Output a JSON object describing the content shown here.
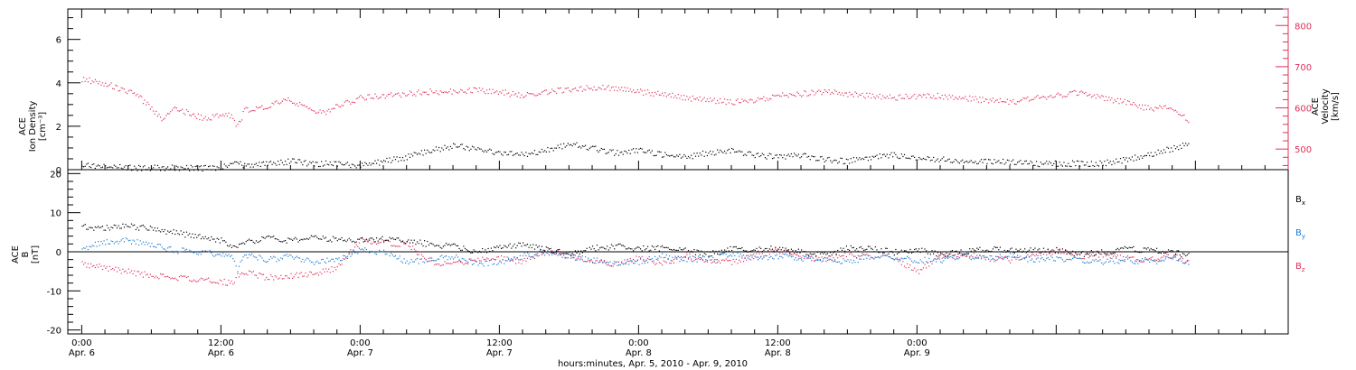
{
  "colors": {
    "density": "#000000",
    "velocity": "#e0305a",
    "bx": "#000000",
    "by": "#1c7ad4",
    "bz": "#e0305a"
  },
  "chart_data": [
    {
      "type": "scatter",
      "panel": "top",
      "ylabel_left": [
        "ACE",
        "Ion Density",
        "[cm⁻³]"
      ],
      "ylabel_right": [
        "ACE",
        "Velocity",
        "[km/s]"
      ],
      "ylim_left": [
        0,
        7.4
      ],
      "ylim_right": [
        450,
        840
      ],
      "yticks_left": [
        "0",
        "2",
        "4",
        "6"
      ],
      "yticks_right": [
        "500",
        "600",
        "700",
        "800"
      ],
      "series": [
        {
          "axis": "left",
          "x": [
            0,
            2,
            4,
            6,
            8,
            10,
            12,
            13.4,
            14,
            16,
            18,
            20,
            22,
            24,
            26,
            28,
            30,
            32,
            34,
            36,
            38,
            40,
            42,
            44,
            46,
            48,
            50,
            52,
            54,
            56,
            58,
            60,
            62,
            64,
            66,
            68,
            70,
            72,
            74,
            76,
            78,
            80,
            82,
            84,
            86,
            88,
            90,
            92,
            94,
            95.5
          ],
          "values": [
            0.25,
            0.15,
            0.12,
            0.1,
            0.1,
            0.08,
            0.1,
            0.4,
            0.2,
            0.3,
            0.4,
            0.3,
            0.3,
            0.2,
            0.4,
            0.6,
            0.9,
            1.1,
            1.0,
            0.8,
            0.7,
            0.9,
            1.2,
            1.0,
            0.8,
            0.9,
            0.7,
            0.6,
            0.8,
            0.9,
            0.7,
            0.6,
            0.7,
            0.5,
            0.4,
            0.6,
            0.7,
            0.5,
            0.5,
            0.4,
            0.4,
            0.4,
            0.3,
            0.3,
            0.3,
            0.3,
            0.5,
            0.7,
            1.0,
            1.2
          ]
        },
        {
          "axis": "right",
          "x": [
            0,
            1,
            2,
            3,
            4,
            5,
            6,
            7,
            8,
            9,
            10,
            11,
            12,
            13,
            13.4,
            14,
            15,
            16,
            17,
            18,
            19,
            20,
            21,
            22,
            23,
            24,
            26,
            28,
            30,
            32,
            34,
            36,
            38,
            40,
            42,
            44,
            46,
            48,
            50,
            52,
            54,
            56,
            58,
            60,
            62,
            64,
            66,
            68,
            70,
            72,
            74,
            76,
            78,
            80,
            82,
            84,
            86,
            88,
            90,
            91,
            92,
            93,
            94,
            95,
            95.5
          ],
          "values": [
            670,
            665,
            660,
            650,
            640,
            625,
            600,
            570,
            600,
            590,
            580,
            575,
            585,
            580,
            555,
            595,
            600,
            605,
            615,
            620,
            605,
            590,
            590,
            605,
            615,
            625,
            630,
            635,
            640,
            640,
            645,
            640,
            630,
            640,
            645,
            650,
            650,
            640,
            635,
            625,
            620,
            615,
            620,
            630,
            635,
            640,
            635,
            630,
            625,
            630,
            630,
            625,
            620,
            615,
            625,
            630,
            640,
            625,
            615,
            605,
            600,
            600,
            600,
            585,
            555
          ]
        }
      ]
    },
    {
      "type": "scatter",
      "panel": "bottom",
      "ylabel": [
        "ACE",
        "B",
        "[nT]"
      ],
      "ylim": [
        -21,
        21
      ],
      "yticks": [
        "-20",
        "-10",
        "0",
        "10",
        "20"
      ],
      "legend": [
        "Bx",
        "By",
        "Bz"
      ],
      "series": [
        {
          "name": "Bx",
          "x": [
            0,
            2,
            4,
            6,
            8,
            10,
            12,
            13.4,
            14,
            16,
            18,
            20,
            22,
            24,
            26,
            28,
            30,
            32,
            34,
            36,
            38,
            40,
            42,
            44,
            46,
            48,
            50,
            52,
            54,
            56,
            58,
            60,
            62,
            64,
            66,
            68,
            70,
            72,
            74,
            76,
            78,
            80,
            82,
            84,
            86,
            88,
            90,
            92,
            94,
            95.5
          ],
          "values": [
            6.5,
            6.2,
            6.6,
            6.0,
            5.0,
            4.0,
            3.0,
            1.0,
            2.5,
            3.5,
            3.0,
            3.8,
            3.2,
            3.0,
            3.5,
            3.0,
            2.0,
            1.5,
            0,
            1.5,
            2.0,
            1.0,
            -0.5,
            1.0,
            1.5,
            1.0,
            1.0,
            0.5,
            -0.5,
            1.0,
            0.5,
            1.0,
            0,
            -0.5,
            1.0,
            0.8,
            0,
            0.5,
            -0.5,
            0,
            0.8,
            0.5,
            0.5,
            0.5,
            -0.5,
            0,
            0.8,
            0.5,
            0,
            -1.0
          ]
        },
        {
          "name": "By",
          "x": [
            0,
            2,
            4,
            6,
            8,
            10,
            12,
            13,
            13.4,
            14,
            16,
            18,
            20,
            22,
            24,
            26,
            28,
            30,
            32,
            34,
            36,
            38,
            40,
            42,
            44,
            46,
            48,
            50,
            52,
            54,
            56,
            58,
            60,
            62,
            64,
            66,
            68,
            70,
            72,
            74,
            76,
            78,
            80,
            82,
            84,
            86,
            88,
            90,
            92,
            94,
            95.5
          ],
          "values": [
            1.0,
            2.5,
            3.0,
            2.0,
            0.5,
            0,
            -0.5,
            -1.0,
            -4.5,
            -0.5,
            -2.0,
            -1.0,
            -2.5,
            -2.0,
            0.5,
            0,
            -2.5,
            -2.0,
            -1.0,
            -3.0,
            -2.5,
            -1.0,
            0,
            -1.0,
            -2.0,
            -3.0,
            -2.5,
            -1.0,
            -2.0,
            -1.5,
            -0.5,
            -1.5,
            -1.0,
            -1.5,
            -2.0,
            -2.5,
            -1.0,
            -1.5,
            -2.0,
            -2.0,
            -1.0,
            -1.5,
            -1.0,
            -2.0,
            -1.5,
            -2.0,
            -2.5,
            -2.0,
            -2.5,
            -1.5,
            -3.0
          ]
        },
        {
          "name": "Bz",
          "x": [
            0,
            2,
            4,
            6,
            8,
            10,
            12,
            13,
            13.4,
            14,
            16,
            18,
            20,
            22,
            24,
            26,
            28,
            30,
            32,
            34,
            36,
            38,
            40,
            42,
            44,
            46,
            48,
            50,
            52,
            54,
            56,
            58,
            60,
            62,
            64,
            66,
            68,
            70,
            72,
            74,
            76,
            78,
            80,
            82,
            84,
            86,
            88,
            90,
            92,
            94,
            95.5
          ],
          "values": [
            -3.0,
            -4.0,
            -5.0,
            -6.0,
            -6.5,
            -7.0,
            -7.5,
            -8.0,
            -6.0,
            -5.0,
            -6.5,
            -6.0,
            -5.5,
            -4.0,
            3.0,
            2.5,
            2.0,
            -2.5,
            -3.0,
            -2.0,
            -1.5,
            -2.5,
            0.5,
            -1.0,
            -2.5,
            -3.0,
            -1.5,
            -3.0,
            -1.0,
            -2.0,
            -2.5,
            -1.0,
            0.5,
            -1.0,
            -2.0,
            -0.5,
            -1.0,
            -1.5,
            -5.0,
            -1.0,
            -0.5,
            -1.5,
            -2.0,
            -1.0,
            0.5,
            -1.0,
            -0.5,
            -1.5,
            -2.0,
            -1.0,
            -2.5
          ]
        }
      ]
    }
  ],
  "x_axis": {
    "range_hours": [
      -1.2,
      104
    ],
    "ticks": [
      {
        "h": 0,
        "time": "0:00",
        "date": "Apr. 6"
      },
      {
        "h": 12,
        "time": "12:00",
        "date": "Apr. 6"
      },
      {
        "h": 24,
        "time": "0:00",
        "date": "Apr. 7"
      },
      {
        "h": 36,
        "time": "12:00",
        "date": "Apr. 7"
      },
      {
        "h": 48,
        "time": "0:00",
        "date": "Apr. 8"
      },
      {
        "h": 60,
        "time": "12:00",
        "date": "Apr. 8"
      },
      {
        "h": 72,
        "time": "0:00",
        "date": "Apr. 9"
      }
    ],
    "xlabel": "hours:minutes, Apr.  5, 2010 - Apr.  9, 2010"
  },
  "legend_text": {
    "bx": {
      "main": "B",
      "sub": "x"
    },
    "by": {
      "main": "B",
      "sub": "y"
    },
    "bz": {
      "main": "B",
      "sub": "z"
    }
  }
}
